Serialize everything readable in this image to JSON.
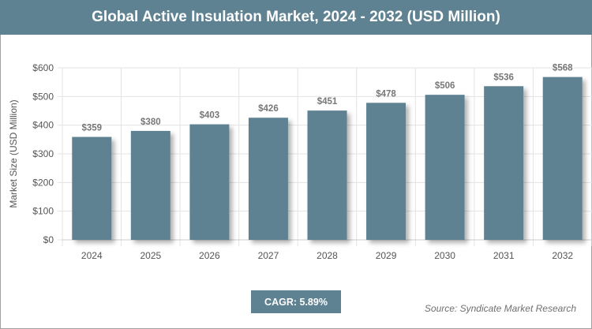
{
  "title": "Global Active Insulation Market, 2024 - 2032 (USD Million)",
  "cagr_label": "CAGR: 5.89%",
  "source": "Source: Syndicate Market Research",
  "colors": {
    "bar": "#5f8292",
    "header": "#5f8292"
  },
  "chart_data": {
    "type": "bar",
    "title": "Global Active Insulation Market, 2024 - 2032 (USD Million)",
    "xlabel": "",
    "ylabel": "Market Size (USD Million)",
    "categories": [
      "2024",
      "2025",
      "2026",
      "2027",
      "2028",
      "2029",
      "2030",
      "2031",
      "2032"
    ],
    "values": [
      359,
      380,
      403,
      426,
      451,
      478,
      506,
      536,
      568
    ],
    "data_labels": [
      "$359",
      "$380",
      "$403",
      "$426",
      "$451",
      "$478",
      "$506",
      "$536",
      "$568"
    ],
    "ylim": [
      0,
      600
    ],
    "yticks": [
      0,
      100,
      200,
      300,
      400,
      500,
      600
    ],
    "ytick_labels": [
      "$0",
      "$100",
      "$200",
      "$300",
      "$400",
      "$500",
      "$600"
    ],
    "grid": true
  }
}
